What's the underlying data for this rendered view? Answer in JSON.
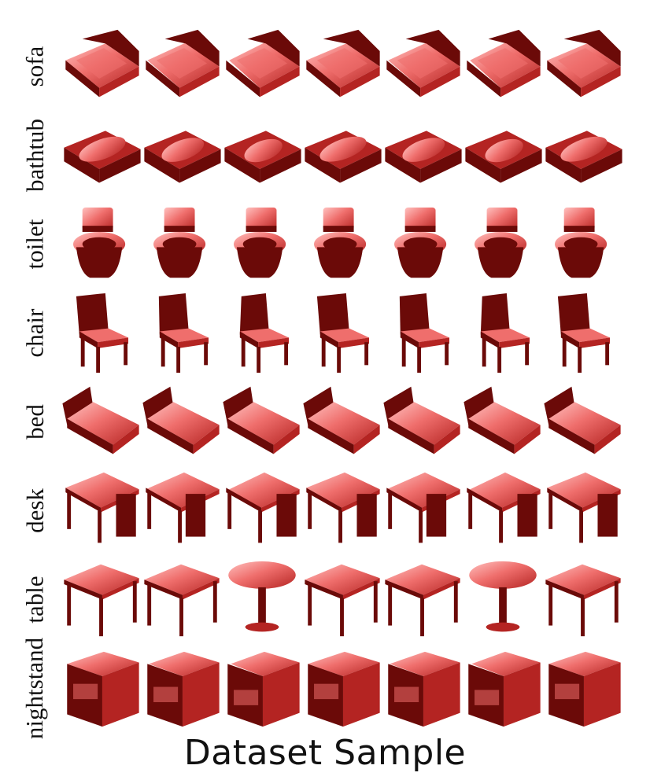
{
  "figure": {
    "caption": "Dataset Sample",
    "colors": {
      "dark": "#6b0a08",
      "mid": "#b42422",
      "light": "#ef6e6c",
      "highlight": "#ffc2c0"
    },
    "rows": [
      {
        "label": "sofa",
        "shape": "sofa",
        "count": 7
      },
      {
        "label": "bathtub",
        "shape": "bathtub",
        "count": 7
      },
      {
        "label": "toilet",
        "shape": "toilet",
        "count": 7
      },
      {
        "label": "chair",
        "shape": "chair",
        "count": 7
      },
      {
        "label": "bed",
        "shape": "bed",
        "count": 7
      },
      {
        "label": "desk",
        "shape": "desk",
        "count": 7
      },
      {
        "label": "table",
        "shape": "table",
        "count": 7
      },
      {
        "label": "nightstand",
        "shape": "nightstand",
        "count": 7
      }
    ]
  }
}
